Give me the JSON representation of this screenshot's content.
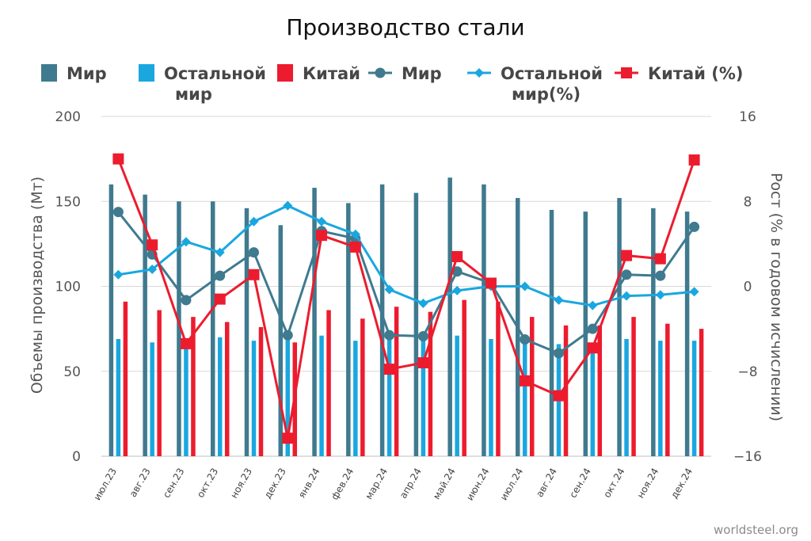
{
  "chart_data": {
    "type": "bar",
    "title": "Производство стали",
    "source": "worldsteel.org",
    "categories": [
      "июл.23",
      "авг.23",
      "сен.23",
      "окт.23",
      "ноя.23",
      "дек.23",
      "янв.24",
      "фев.24",
      "мар.24",
      "апр.24",
      "май.24",
      "июн.24",
      "июл.24",
      "авг.24",
      "сен.24",
      "окт.24",
      "ноя.24",
      "дек.24"
    ],
    "ylabel_left": "Объемы производства (Мт)",
    "ylabel_right": "Рост (% в годовом исчислении)",
    "ylim_left": [
      0,
      200
    ],
    "yticks_left": [
      "0",
      "50",
      "100",
      "150",
      "200"
    ],
    "ylim_right": [
      -16,
      16
    ],
    "yticks_right": [
      "−16",
      "−8",
      "0",
      "8",
      "16"
    ],
    "grid": true,
    "legend_position": "top",
    "legend": [
      {
        "label_lines": [
          "Мир"
        ],
        "kind": "bar",
        "color": "#3f7a8f"
      },
      {
        "label_lines": [
          "Остальной",
          "мир"
        ],
        "kind": "bar",
        "color": "#1aa7e0"
      },
      {
        "label_lines": [
          "Китай"
        ],
        "kind": "bar",
        "color": "#ec1c2e"
      },
      {
        "label_lines": [
          "Мир"
        ],
        "kind": "line-circle",
        "color": "#3f7a8f"
      },
      {
        "label_lines": [
          "Остальной",
          "мир(%)"
        ],
        "kind": "line-diamond",
        "color": "#1aa7e0"
      },
      {
        "label_lines": [
          "Китай (%)"
        ],
        "kind": "line-square",
        "color": "#ec1c2e"
      }
    ],
    "bar_series": [
      {
        "name": "Мир",
        "color": "#3f7a8f",
        "values": [
          160,
          154,
          150,
          150,
          146,
          136,
          158,
          149,
          160,
          155,
          164,
          160,
          152,
          145,
          144,
          152,
          146,
          144
        ]
      },
      {
        "name": "Остальной мир",
        "color": "#1aa7e0",
        "values": [
          69,
          67,
          66,
          70,
          68,
          69,
          71,
          68,
          72,
          70,
          71,
          69,
          69,
          66,
          64,
          69,
          68,
          68
        ]
      },
      {
        "name": "Китай",
        "color": "#ec1c2e",
        "values": [
          91,
          86,
          82,
          79,
          76,
          67,
          86,
          81,
          88,
          85,
          92,
          91,
          82,
          77,
          77,
          82,
          78,
          75
        ]
      }
    ],
    "line_series": [
      {
        "name": "Мир",
        "color": "#3f7a8f",
        "marker": "circle",
        "values": [
          7.0,
          3.0,
          -1.3,
          1.0,
          3.2,
          -4.6,
          5.2,
          4.5,
          -4.6,
          -4.7,
          1.4,
          0.3,
          -5.0,
          -6.3,
          -4.0,
          1.1,
          1.0,
          5.6
        ]
      },
      {
        "name": "Остальной мир (%)",
        "color": "#1aa7e0",
        "marker": "diamond",
        "values": [
          1.1,
          1.6,
          4.2,
          3.2,
          6.1,
          7.6,
          6.1,
          4.9,
          -0.3,
          -1.6,
          -0.4,
          0.0,
          0.0,
          -1.3,
          -1.8,
          -0.9,
          -0.8,
          -0.5
        ]
      },
      {
        "name": "Китай (%)",
        "color": "#ec1c2e",
        "marker": "square",
        "values": [
          12.0,
          3.9,
          -5.4,
          -1.2,
          1.1,
          -14.3,
          4.8,
          3.7,
          -7.8,
          -7.2,
          2.8,
          0.3,
          -8.9,
          -10.3,
          -5.8,
          2.9,
          2.6,
          11.9
        ]
      }
    ]
  }
}
